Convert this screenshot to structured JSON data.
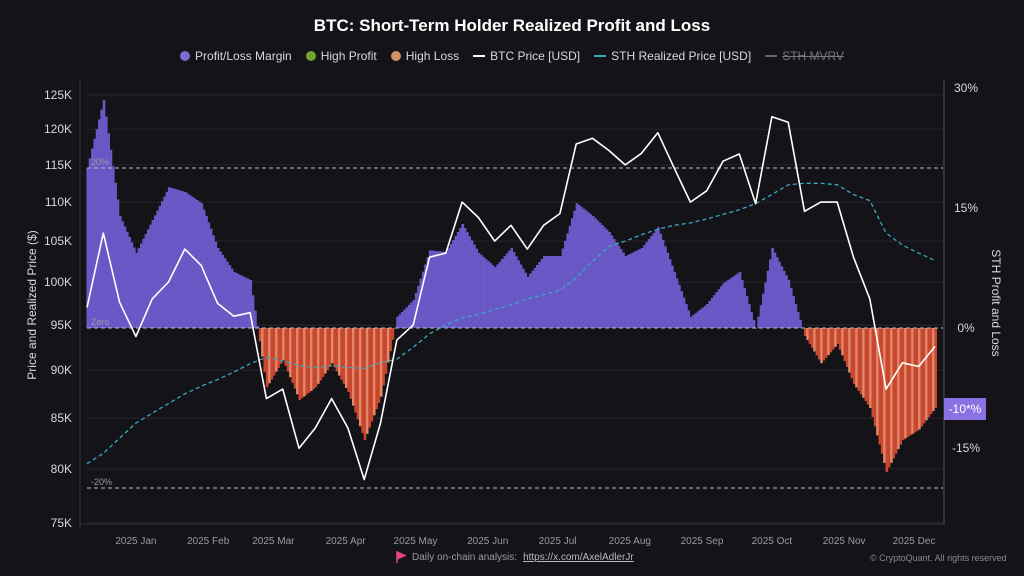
{
  "chart_data": {
    "type": "bar+line",
    "title": "BTC: Short-Term Holder Realized Profit and Loss",
    "legend": [
      "Profit/Loss Margin",
      "High Profit",
      "High Loss",
      "BTC Price [USD]",
      "STH Realized Price [USD]",
      "STH MVRV"
    ],
    "legend_placement": "top-center",
    "ylabel_left": "Price and Realized Price ($)",
    "ylabel_right": "STH Profit and Loss",
    "left_axis": {
      "scale": "log",
      "range": [
        75000,
        125000
      ],
      "ticks": [
        "125K",
        "120K",
        "115K",
        "110K",
        "105K",
        "100K",
        "95K",
        "90K",
        "85K",
        "80K",
        "75K"
      ],
      "tick_values": [
        125000,
        120000,
        115000,
        110000,
        105000,
        100000,
        95000,
        90000,
        85000,
        80000,
        75000
      ]
    },
    "right_axis": {
      "scale": "linear",
      "range": [
        -24.4,
        30
      ],
      "ticks": [
        "30%",
        "15%",
        "0%",
        "-15%"
      ],
      "tick_values": [
        30,
        15,
        0,
        -15
      ]
    },
    "x_ticks": [
      "2025 Jan",
      "2025 Feb",
      "2025 Mar",
      "2025 Apr",
      "2025 May",
      "2025 Jun",
      "2025 Jul",
      "2025 Aug",
      "2025 Sep",
      "2025 Oct",
      "2025 Nov",
      "2025 Dec"
    ],
    "x_tick_dates": [
      "2025-01-01",
      "2025-02-01",
      "2025-03-01",
      "2025-04-01",
      "2025-05-01",
      "2025-06-01",
      "2025-07-01",
      "2025-08-01",
      "2025-09-01",
      "2025-10-01",
      "2025-11-01",
      "2025-12-01"
    ],
    "x_range": [
      "2024-12-11",
      "2025-12-10"
    ],
    "reference_lines": [
      {
        "label": "20%",
        "value": 20
      },
      {
        "label": "Zero",
        "value": 0
      },
      {
        "label": "-20%",
        "value": -20
      }
    ],
    "current_value_badge": "-10*%",
    "grid": true,
    "dates": [
      "2024-12-11",
      "2024-12-18",
      "2024-12-25",
      "2025-01-01",
      "2025-01-08",
      "2025-01-15",
      "2025-01-22",
      "2025-01-29",
      "2025-02-05",
      "2025-02-12",
      "2025-02-19",
      "2025-02-26",
      "2025-03-05",
      "2025-03-12",
      "2025-03-19",
      "2025-03-26",
      "2025-04-02",
      "2025-04-09",
      "2025-04-16",
      "2025-04-23",
      "2025-04-30",
      "2025-05-07",
      "2025-05-14",
      "2025-05-21",
      "2025-05-28",
      "2025-06-04",
      "2025-06-11",
      "2025-06-18",
      "2025-06-25",
      "2025-07-02",
      "2025-07-09",
      "2025-07-16",
      "2025-07-23",
      "2025-07-30",
      "2025-08-06",
      "2025-08-13",
      "2025-08-20",
      "2025-08-27",
      "2025-09-03",
      "2025-09-10",
      "2025-09-17",
      "2025-09-24",
      "2025-10-01",
      "2025-10-08",
      "2025-10-15",
      "2025-10-22",
      "2025-10-29",
      "2025-11-05",
      "2025-11-12",
      "2025-11-19",
      "2025-11-26",
      "2025-12-03",
      "2025-12-10"
    ],
    "series": [
      {
        "name": "Profit/Loss Margin",
        "axis": "right",
        "unit": "%",
        "color": "#6a58c6",
        "negative_color": "#c9472f",
        "values": [
          20,
          28.5,
          14,
          9.4,
          13.5,
          17.6,
          17,
          15.6,
          10,
          7,
          6,
          -7.4,
          -4,
          -9,
          -7.4,
          -4.4,
          -8,
          -14,
          -8.6,
          1.4,
          3.5,
          9.7,
          9.5,
          13,
          9.4,
          7.6,
          10,
          6.4,
          9,
          9,
          15.6,
          14,
          12,
          9,
          10,
          12.6,
          7,
          1.4,
          3,
          5.6,
          7,
          0,
          10,
          6,
          -1,
          -4.4,
          -2,
          -7,
          -10,
          -18,
          -14,
          -12.7,
          -10
        ]
      },
      {
        "name": "BTC Price [USD]",
        "axis": "left",
        "unit": "USD",
        "color": "#ffffff",
        "values": [
          97000,
          106000,
          97600,
          93700,
          98000,
          100000,
          104000,
          102000,
          97500,
          96000,
          96400,
          87000,
          88000,
          82000,
          84000,
          87000,
          84000,
          79000,
          84500,
          93300,
          95000,
          103000,
          103500,
          110000,
          108000,
          105000,
          107000,
          104000,
          107000,
          108500,
          117900,
          118700,
          117000,
          115000,
          116600,
          119500,
          114600,
          110000,
          111500,
          115500,
          116500,
          109800,
          121800,
          121000,
          108800,
          110000,
          110000,
          103000,
          98000,
          88000,
          90800,
          90400,
          92600
        ]
      },
      {
        "name": "STH Realized Price [USD]",
        "axis": "left",
        "unit": "USD",
        "color": "#3aa9c4",
        "dashed": true,
        "values": [
          80500,
          81500,
          83000,
          84500,
          85500,
          86500,
          87500,
          88300,
          89000,
          89800,
          90700,
          91400,
          91000,
          90500,
          90300,
          90500,
          90300,
          90200,
          90800,
          91200,
          92500,
          94000,
          95000,
          95800,
          96200,
          96800,
          97300,
          98000,
          98500,
          99000,
          100500,
          102500,
          104300,
          105000,
          105800,
          106500,
          107000,
          107300,
          107800,
          108400,
          109000,
          109800,
          111000,
          112300,
          112500,
          112500,
          112300,
          111000,
          110200,
          106000,
          104500,
          103500,
          102600
        ]
      }
    ]
  },
  "legend_colors": {
    "profit_loss_margin": "#7b6bd6",
    "high_profit": "#6fa52b",
    "high_loss": "#d49066"
  },
  "footer": {
    "text": "Daily on-chain analysis:",
    "link": "https://x.com/AxelAdlerJr",
    "copyright": "© CryptoQuant. All rights reserved",
    "flag_icon": "flag-icon"
  }
}
